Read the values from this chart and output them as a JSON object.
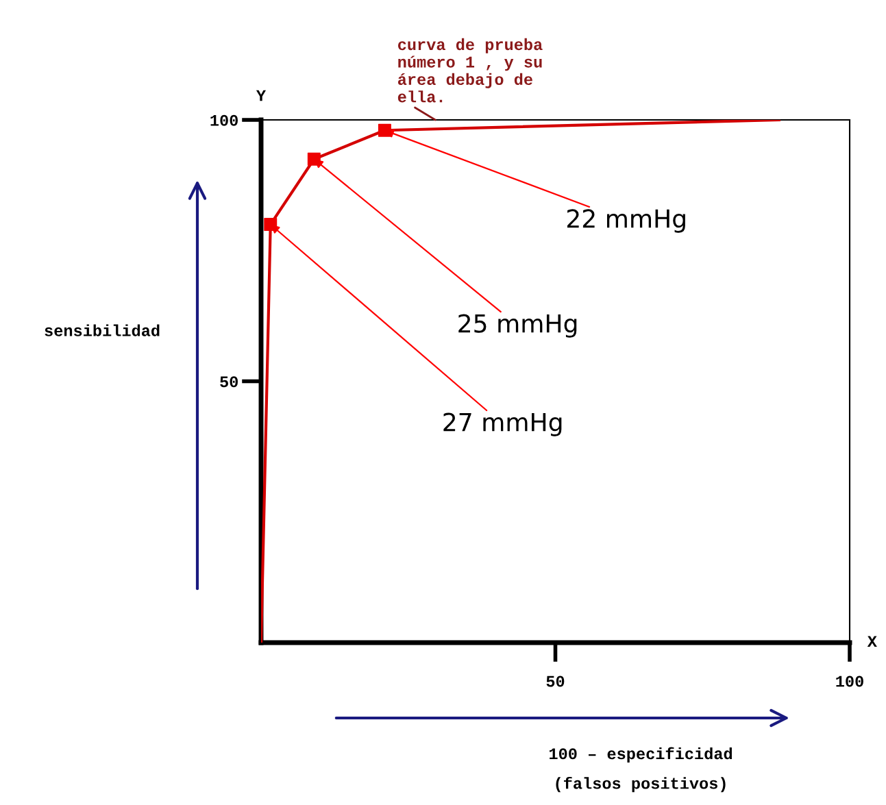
{
  "chart_data": {
    "type": "line",
    "xlabel": "100 – especificidad\n(falsos positivos)",
    "ylabel": "sensibilidad",
    "xlim": [
      0,
      100
    ],
    "xticks": [
      50,
      100
    ],
    "ylim": [
      0,
      100
    ],
    "yticks": [
      50,
      100
    ],
    "grid": false,
    "series": [
      {
        "color": "#d40000",
        "x": [
          0,
          1.6,
          9,
          21,
          88
        ],
        "values": [
          0,
          80,
          92.5,
          98,
          100
        ],
        "marker": "none"
      },
      {
        "type": "scatter",
        "color": "#ee0000",
        "x": [
          1.6,
          9,
          21
        ],
        "values": [
          80,
          92.5,
          98
        ],
        "marker": "square"
      }
    ],
    "annotations": [
      {
        "text": "22 mmHg",
        "x": 21,
        "y": 98
      },
      {
        "text": "25 mmHg",
        "x": 9,
        "y": 92.5
      },
      {
        "text": "27 mmHg",
        "x": 1.6,
        "y": 80
      },
      "curva de prueba\nnúmero 1 , y su\nárea debajo de\nella.",
      "Y",
      "X"
    ]
  }
}
